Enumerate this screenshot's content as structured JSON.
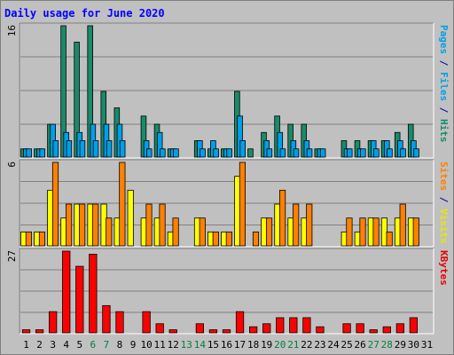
{
  "chart_data": {
    "type": "bar",
    "title": "Daily usage for June 2020",
    "x": [
      "1",
      "2",
      "3",
      "4",
      "5",
      "6",
      "7",
      "8",
      "9",
      "10",
      "11",
      "12",
      "13",
      "14",
      "15",
      "16",
      "17",
      "18",
      "19",
      "20",
      "21",
      "22",
      "23",
      "24",
      "25",
      "26",
      "27",
      "28",
      "29",
      "30",
      "31"
    ],
    "weekend_days": [
      "6",
      "7",
      "13",
      "14",
      "20",
      "21",
      "27",
      "28"
    ],
    "panels": [
      {
        "ymax_label": "16",
        "ymax": 16,
        "axis_label_parts": [
          {
            "text": "Pages",
            "color": "#00a0e8"
          },
          {
            "text": " / ",
            "color": "#0000a8"
          },
          {
            "text": "Files",
            "color": "#00a0e8"
          },
          {
            "text": " / ",
            "color": "#0000a8"
          },
          {
            "text": "Hits",
            "color": "#1a8a6a"
          }
        ],
        "gridlines": 3,
        "series": [
          {
            "name": "Hits",
            "color": "#1a8a6a",
            "values": [
              1,
              1,
              4,
              16,
              14,
              16,
              8,
              6,
              0,
              5,
              4,
              1,
              0,
              2,
              1,
              1,
              8,
              1,
              3,
              5,
              4,
              4,
              1,
              0,
              2,
              2,
              2,
              2,
              3,
              4,
              0
            ]
          },
          {
            "name": "Files",
            "color": "#00a0e8",
            "values": [
              1,
              1,
              4,
              3,
              3,
              4,
              4,
              4,
              0,
              2,
              3,
              1,
              0,
              2,
              2,
              1,
              5,
              0,
              2,
              3,
              2,
              2,
              1,
              0,
              1,
              1,
              2,
              2,
              2,
              2,
              0
            ]
          },
          {
            "name": "Pages",
            "color": "#00a0e8",
            "values": [
              1,
              1,
              2,
              2,
              2,
              2,
              2,
              2,
              0,
              1,
              1,
              1,
              0,
              1,
              1,
              1,
              2,
              0,
              1,
              1,
              1,
              1,
              1,
              0,
              1,
              1,
              1,
              1,
              1,
              1,
              0
            ]
          }
        ]
      },
      {
        "ymax_label": "6",
        "ymax": 6,
        "axis_label_parts": [
          {
            "text": "Sites",
            "color": "#ff8000"
          },
          {
            "text": " / ",
            "color": "#0000a8"
          },
          {
            "text": "Visits",
            "color": "#e8e800"
          }
        ],
        "gridlines": 3,
        "series": [
          {
            "name": "Visits",
            "color": "#ffff00",
            "values": [
              1,
              1,
              4,
              2,
              3,
              3,
              3,
              2,
              4,
              2,
              2,
              1,
              0,
              2,
              1,
              1,
              5,
              0,
              2,
              3,
              2,
              2,
              0,
              0,
              1,
              1,
              2,
              2,
              2,
              2,
              0
            ]
          },
          {
            "name": "Sites",
            "color": "#ff8000",
            "values": [
              1,
              1,
              6,
              3,
              3,
              3,
              2,
              6,
              0,
              3,
              3,
              2,
              0,
              2,
              1,
              1,
              6,
              1,
              2,
              4,
              3,
              3,
              0,
              0,
              2,
              2,
              2,
              1,
              3,
              2,
              0
            ]
          }
        ]
      },
      {
        "ymax_label": "27",
        "ymax": 27,
        "axis_label_parts": [
          {
            "text": "KBytes",
            "color": "#e80000"
          }
        ],
        "gridlines": 3,
        "series": [
          {
            "name": "KBytes",
            "color": "#ff0000",
            "values": [
              1,
              1,
              7,
              27,
              22,
              26,
              9,
              7,
              0,
              7,
              3,
              1,
              0,
              3,
              1,
              1,
              7,
              2,
              3,
              5,
              5,
              5,
              2,
              0,
              3,
              3,
              1,
              2,
              3,
              5,
              0
            ]
          }
        ]
      }
    ]
  },
  "colors": {
    "background": "#c0c0c0",
    "title": "#0000ff",
    "weekday_label": "#000000",
    "weekend_label": "#008040",
    "gridline": "#808080",
    "bar_outline": "#000000"
  }
}
